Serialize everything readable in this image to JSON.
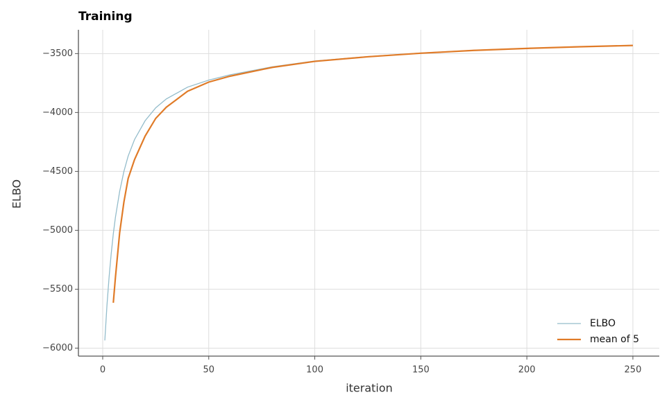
{
  "chart_data": {
    "type": "line",
    "title": "Training",
    "x_label": "iteration",
    "y_label": "ELBO",
    "x": [
      1,
      2,
      3,
      4,
      5,
      6,
      8,
      10,
      12,
      15,
      20,
      25,
      30,
      40,
      50,
      60,
      80,
      100,
      125,
      150,
      175,
      200,
      225,
      250
    ],
    "series": [
      {
        "name": "ELBO",
        "color": "#93bccb",
        "values": [
          -5935,
          -5640,
          -5400,
          -5200,
          -5030,
          -4890,
          -4670,
          -4500,
          -4370,
          -4230,
          -4070,
          -3960,
          -3885,
          -3785,
          -3725,
          -3680,
          -3612,
          -3563,
          -3525,
          -3495,
          -3472,
          -3455,
          -3441,
          -3430
        ]
      },
      {
        "name": "mean of 5",
        "color": "#e07b28",
        "values": [
          null,
          null,
          null,
          null,
          -5615,
          -5400,
          -5020,
          -4760,
          -4560,
          -4400,
          -4200,
          -4050,
          -3955,
          -3820,
          -3742,
          -3692,
          -3617,
          -3566,
          -3527,
          -3497,
          -3473,
          -3456,
          -3442,
          -3431
        ]
      }
    ],
    "xlim": [
      -11.45,
      262.45
    ],
    "ylim": [
      -6068,
      -3298
    ],
    "xticks": [
      0,
      50,
      100,
      150,
      200,
      250
    ],
    "yticks": [
      {
        "value": -6000,
        "label": "−6000"
      },
      {
        "value": -5500,
        "label": "−5500"
      },
      {
        "value": -5000,
        "label": "−5000"
      },
      {
        "value": -4500,
        "label": "−4500"
      },
      {
        "value": -4000,
        "label": "−4000"
      },
      {
        "value": -3500,
        "label": "−3500"
      }
    ],
    "grid": true,
    "legend": "lower right"
  }
}
